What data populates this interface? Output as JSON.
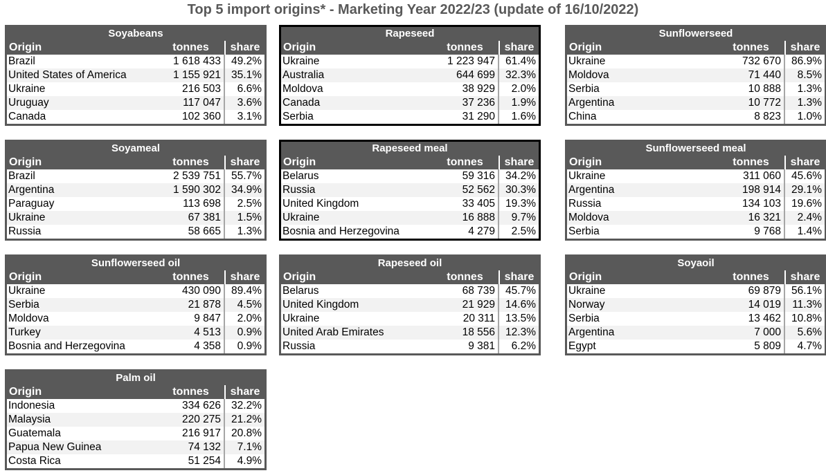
{
  "title": "Top 5 import origins* - Marketing Year 2022/23 (update of 16/10/2022)",
  "columns": {
    "origin": "Origin",
    "tonnes": "tonnes",
    "share": "share"
  },
  "tables": [
    {
      "name": "Soyabeans",
      "rows": [
        [
          "Brazil",
          "1 618 433",
          "49.2%"
        ],
        [
          "United States of America",
          "1 155 921",
          "35.1%"
        ],
        [
          "Ukraine",
          "216 503",
          "6.6%"
        ],
        [
          "Uruguay",
          "117 047",
          "3.6%"
        ],
        [
          "Canada",
          "102 360",
          "3.1%"
        ]
      ]
    },
    {
      "name": "Rapeseed",
      "rows": [
        [
          "Ukraine",
          "1 223 947",
          "61.4%"
        ],
        [
          "Australia",
          "644 699",
          "32.3%"
        ],
        [
          "Moldova",
          "38 929",
          "2.0%"
        ],
        [
          "Canada",
          "37 236",
          "1.9%"
        ],
        [
          "Serbia",
          "31 290",
          "1.6%"
        ]
      ]
    },
    {
      "name": "Sunflowerseed",
      "rows": [
        [
          "Ukraine",
          "732 670",
          "86.9%"
        ],
        [
          "Moldova",
          "71 440",
          "8.5%"
        ],
        [
          "Serbia",
          "10 888",
          "1.3%"
        ],
        [
          "Argentina",
          "10 772",
          "1.3%"
        ],
        [
          "China",
          "8 823",
          "1.0%"
        ]
      ]
    },
    {
      "name": "Soyameal",
      "rows": [
        [
          "Brazil",
          "2 539 751",
          "55.7%"
        ],
        [
          "Argentina",
          "1 590 302",
          "34.9%"
        ],
        [
          "Paraguay",
          "113 698",
          "2.5%"
        ],
        [
          "Ukraine",
          "67 381",
          "1.5%"
        ],
        [
          "Russia",
          "58 665",
          "1.3%"
        ]
      ]
    },
    {
      "name": "Rapeseed meal",
      "rows": [
        [
          "Belarus",
          "59 316",
          "34.2%"
        ],
        [
          "Russia",
          "52 562",
          "30.3%"
        ],
        [
          "United Kingdom",
          "33 405",
          "19.3%"
        ],
        [
          "Ukraine",
          "16 888",
          "9.7%"
        ],
        [
          "Bosnia and Herzegovina",
          "4 279",
          "2.5%"
        ]
      ]
    },
    {
      "name": "Sunflowerseed meal",
      "rows": [
        [
          "Ukraine",
          "311 060",
          "45.6%"
        ],
        [
          "Argentina",
          "198 914",
          "29.1%"
        ],
        [
          "Russia",
          "134 103",
          "19.6%"
        ],
        [
          "Moldova",
          "16 321",
          "2.4%"
        ],
        [
          "Serbia",
          "9 768",
          "1.4%"
        ]
      ]
    },
    {
      "name": "Sunflowerseed oil",
      "rows": [
        [
          "Ukraine",
          "430 090",
          "89.4%"
        ],
        [
          "Serbia",
          "21 878",
          "4.5%"
        ],
        [
          "Moldova",
          "9 847",
          "2.0%"
        ],
        [
          "Turkey",
          "4 513",
          "0.9%"
        ],
        [
          "Bosnia and Herzegovina",
          "4 358",
          "0.9%"
        ]
      ]
    },
    {
      "name": "Rapeseed oil",
      "rows": [
        [
          "Belarus",
          "68 739",
          "45.7%"
        ],
        [
          "United Kingdom",
          "21 929",
          "14.6%"
        ],
        [
          "Ukraine",
          "20 311",
          "13.5%"
        ],
        [
          "United Arab Emirates",
          "18 556",
          "12.3%"
        ],
        [
          "Russia",
          "9 381",
          "6.2%"
        ]
      ]
    },
    {
      "name": "Soyaoil",
      "rows": [
        [
          "Ukraine",
          "69 879",
          "56.1%"
        ],
        [
          "Norway",
          "14 019",
          "11.3%"
        ],
        [
          "Serbia",
          "13 462",
          "10.8%"
        ],
        [
          "Argentina",
          "7 000",
          "5.6%"
        ],
        [
          "Egypt",
          "5 809",
          "4.7%"
        ]
      ]
    },
    {
      "name": "Palm oil",
      "rows": [
        [
          "Indonesia",
          "334 626",
          "32.2%"
        ],
        [
          "Malaysia",
          "220 275",
          "21.2%"
        ],
        [
          "Guatemala",
          "216 917",
          "20.8%"
        ],
        [
          "Papua New Guinea",
          "74 132",
          "7.1%"
        ],
        [
          "Costa Rica",
          "51 254",
          "4.9%"
        ]
      ]
    }
  ]
}
